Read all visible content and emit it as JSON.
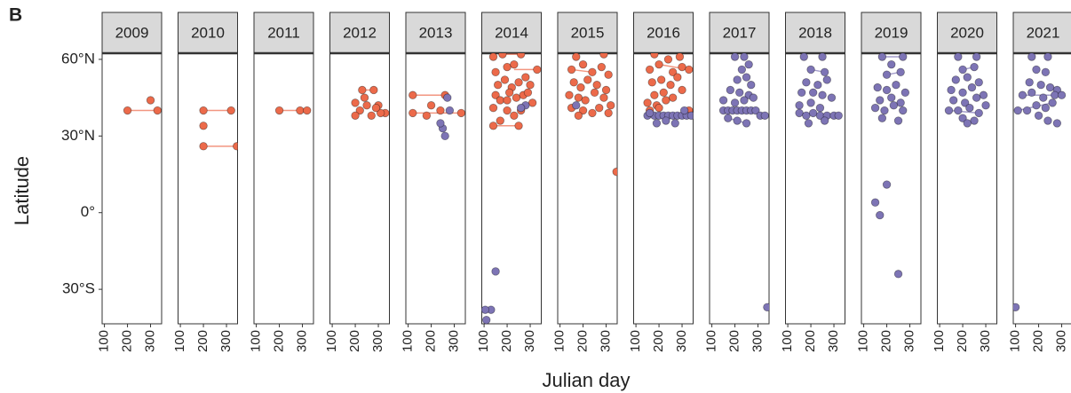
{
  "chart_data": {
    "type": "scatter",
    "panel_tag": "B",
    "ylabel": "Latitude",
    "xlabel": "Julian day",
    "xlim": [
      90,
      348
    ],
    "xticks": [
      100,
      200,
      300
    ],
    "ylim": [
      -43.5,
      62.4
    ],
    "yticks": [
      {
        "value": -30,
        "label": "30°S"
      },
      {
        "value": 0,
        "label": "0°"
      },
      {
        "value": 30,
        "label": "30°N"
      },
      {
        "value": 60,
        "label": "60°N"
      }
    ],
    "facets": [
      {
        "label": "2009",
        "series": [
          {
            "color": "#ec6a4a",
            "x": [
              200,
              300,
              330
            ],
            "values": [
              40,
              44,
              40
            ]
          }
        ],
        "tracks": [
          {
            "color": "#ec6a4a",
            "x": [
              200,
              330
            ],
            "values": [
              40,
              40
            ]
          }
        ]
      },
      {
        "label": "2010",
        "series": [
          {
            "color": "#ec6a4a",
            "x": [
              200,
              320,
              200,
              200,
              345
            ],
            "values": [
              40,
              40,
              34,
              26,
              26
            ]
          }
        ],
        "tracks": [
          {
            "color": "#ec6a4a",
            "x": [
              200,
              320
            ],
            "values": [
              40,
              40
            ]
          },
          {
            "color": "#ec6a4a",
            "x": [
              200,
              345
            ],
            "values": [
              26,
              26
            ]
          }
        ]
      },
      {
        "label": "2011",
        "series": [
          {
            "color": "#ec6a4a",
            "x": [
              200,
              290,
              320
            ],
            "values": [
              40,
              40,
              40
            ]
          }
        ],
        "tracks": [
          {
            "color": "#ec6a4a",
            "x": [
              200,
              320
            ],
            "values": [
              40,
              40
            ]
          }
        ]
      },
      {
        "label": "2012",
        "series": [
          {
            "color": "#ec6a4a",
            "x": [
              200,
              230,
              280,
              220,
              250,
              300,
              330,
              200,
              270,
              310,
              240,
              290
            ],
            "values": [
              43,
              48,
              48,
              40,
              42,
              42,
              39,
              38,
              38,
              39,
              45,
              41
            ]
          }
        ],
        "tracks": [
          {
            "color": "#ec6a4a",
            "x": [
              230,
              280
            ],
            "values": [
              48,
              48
            ]
          }
        ]
      },
      {
        "label": "2013",
        "series": [
          {
            "color": "#ec6a4a",
            "x": [
              120,
              120,
              200,
              260,
              330,
              180,
              240
            ],
            "values": [
              46,
              39,
              42,
              46,
              39,
              38,
              40
            ]
          },
          {
            "color": "#7d74b5",
            "x": [
              270,
              280,
              250,
              260,
              240
            ],
            "values": [
              45,
              40,
              33,
              30,
              35
            ]
          }
        ],
        "tracks": [
          {
            "color": "#ec6a4a",
            "x": [
              120,
              260
            ],
            "values": [
              46,
              46
            ]
          },
          {
            "color": "#ec6a4a",
            "x": [
              120,
              330
            ],
            "values": [
              39,
              39
            ]
          }
        ]
      },
      {
        "label": "2014",
        "series": [
          {
            "color": "#ec6a4a",
            "x": [
              140,
              180,
              260,
              150,
              200,
              230,
              330,
              160,
              190,
              220,
              250,
              280,
              300,
              150,
              170,
              210,
              240,
              270,
              140,
              200,
              230,
              260,
              310,
              170,
              140,
              250,
              200,
              290
            ],
            "values": [
              61,
              62,
              62,
              55,
              57,
              58,
              56,
              50,
              52,
              49,
              51,
              53,
              50,
              46,
              44,
              47,
              45,
              46,
              41,
              40,
              38,
              40,
              43,
              36,
              34,
              34,
              44,
              47
            ]
          },
          {
            "color": "#7d74b5",
            "x": [
              150,
              130,
              110,
              105,
              280,
              260
            ],
            "values": [
              -23,
              -38,
              -42,
              -38,
              42,
              41
            ]
          }
        ],
        "tracks": [
          {
            "color": "#ec6a4a",
            "x": [
              180,
              260
            ],
            "values": [
              62,
              62
            ]
          },
          {
            "color": "#ec6a4a",
            "x": [
              230,
              330
            ],
            "values": [
              56,
              56
            ]
          },
          {
            "color": "#ec6a4a",
            "x": [
              140,
              250
            ],
            "values": [
              34,
              34
            ]
          }
        ]
      },
      {
        "label": "2015",
        "series": [
          {
            "color": "#ec6a4a",
            "x": [
              170,
              290,
              150,
              200,
              240,
              280,
              310,
              160,
              190,
              220,
              260,
              300,
              140,
              180,
              210,
              250,
              290,
              320,
              150,
              200,
              240,
              270,
              310,
              180,
              345
            ],
            "values": [
              61,
              62,
              56,
              58,
              55,
              57,
              54,
              51,
              49,
              52,
              50,
              48,
              46,
              45,
              44,
              47,
              45,
              42,
              41,
              40,
              39,
              41,
              39,
              38,
              16
            ]
          },
          {
            "color": "#7d74b5",
            "x": [
              170
            ],
            "values": [
              42
            ]
          }
        ],
        "tracks": [
          {
            "color": "#ec6a4a",
            "x": [
              150,
              240
            ],
            "values": [
              56,
              55
            ]
          }
        ]
      },
      {
        "label": "2016",
        "series": [
          {
            "color": "#ec6a4a",
            "x": [
              180,
              240,
              290,
              160,
              200,
              260,
              300,
              330,
              170,
              210,
              250,
              280,
              180,
              220,
              260,
              300,
              150,
              190,
              230,
              160,
              200,
              330
            ],
            "values": [
              62,
              60,
              61,
              56,
              58,
              55,
              57,
              56,
              51,
              52,
              50,
              53,
              46,
              47,
              45,
              48,
              43,
              42,
              44,
              40,
              41,
              40
            ]
          },
          {
            "color": "#7d74b5",
            "x": [
              150,
              180,
              200,
              220,
              240,
              260,
              280,
              300,
              320,
              340,
              190,
              230,
              270,
              160,
              310
            ],
            "values": [
              38,
              38,
              38,
              38,
              38,
              38,
              38,
              38,
              38,
              38,
              35,
              36,
              35,
              39,
              40
            ]
          }
        ],
        "tracks": [
          {
            "color": "#ec6a4a",
            "x": [
              200,
              330
            ],
            "values": [
              58,
              56
            ]
          },
          {
            "color": "#7d74b5",
            "x": [
              150,
              340
            ],
            "values": [
              38,
              38
            ]
          }
        ]
      },
      {
        "label": "2017",
        "series": [
          {
            "color": "#7d74b5",
            "x": [
              200,
              240,
              230,
              260,
              210,
              250,
              270,
              180,
              220,
              260,
              150,
              200,
              240,
              280,
              150,
              170,
              190,
              210,
              230,
              250,
              270,
              290,
              310,
              330,
              170,
              210,
              250,
              340
            ],
            "values": [
              61,
              61,
              56,
              58,
              52,
              53,
              50,
              48,
              47,
              46,
              44,
              43,
              44,
              45,
              40,
              40,
              40,
              40,
              40,
              40,
              40,
              40,
              38,
              38,
              37,
              36,
              35,
              -37
            ]
          }
        ],
        "tracks": [
          {
            "color": "#7d74b5",
            "x": [
              150,
              290
            ],
            "values": [
              40,
              40
            ]
          },
          {
            "color": "#7d74b5",
            "x": [
              170,
              250
            ],
            "values": [
              37,
              35
            ]
          }
        ]
      },
      {
        "label": "2018",
        "series": [
          {
            "color": "#7d74b5",
            "x": [
              170,
              250,
              200,
              260,
              180,
              230,
              270,
              160,
              210,
              250,
              290,
              150,
              200,
              240,
              150,
              180,
              210,
              240,
              270,
              300,
              320,
              190,
              260
            ],
            "values": [
              61,
              61,
              56,
              55,
              51,
              50,
              52,
              47,
              47,
              46,
              45,
              42,
              43,
              41,
              39,
              38,
              39,
              38,
              38,
              38,
              38,
              35,
              36
            ]
          }
        ],
        "tracks": [
          {
            "color": "#7d74b5",
            "x": [
              200,
              260
            ],
            "values": [
              56,
              55
            ]
          },
          {
            "color": "#7d74b5",
            "x": [
              150,
              320
            ],
            "values": [
              39,
              38
            ]
          }
        ]
      },
      {
        "label": "2019",
        "series": [
          {
            "color": "#7d74b5",
            "x": [
              180,
              270,
              220,
              200,
              260,
              160,
              200,
              240,
              280,
              170,
              220,
              260,
              150,
              190,
              230,
              270,
              180,
              250,
              150,
              200,
              170,
              250
            ],
            "values": [
              61,
              61,
              58,
              54,
              55,
              49,
              48,
              50,
              47,
              44,
              45,
              43,
              41,
              40,
              42,
              40,
              37,
              36,
              4,
              11,
              -1,
              -24
            ]
          }
        ],
        "tracks": [
          {
            "color": "#7d74b5",
            "x": [
              180,
              270
            ],
            "values": [
              61,
              61
            ]
          },
          {
            "color": "#7d74b5",
            "x": [
              200,
              260
            ],
            "values": [
              54,
              55
            ]
          }
        ]
      },
      {
        "label": "2020",
        "series": [
          {
            "color": "#7d74b5",
            "x": [
              180,
              260,
              200,
              250,
              170,
              220,
              270,
              150,
              200,
              240,
              290,
              160,
              210,
              260,
              300,
              140,
              180,
              230,
              270,
              200,
              250,
              220
            ],
            "values": [
              61,
              61,
              56,
              57,
              52,
              53,
              51,
              48,
              47,
              49,
              46,
              44,
              43,
              45,
              42,
              40,
              40,
              41,
              39,
              37,
              36,
              35
            ]
          }
        ],
        "tracks": [
          {
            "color": "#7d74b5",
            "x": [
              200,
              250
            ],
            "values": [
              56,
              57
            ]
          },
          {
            "color": "#7d74b5",
            "x": [
              140,
              270
            ],
            "values": [
              40,
              39
            ]
          }
        ]
      },
      {
        "label": "2021",
        "series": [
          {
            "color": "#7d74b5",
            "x": [
              170,
              240,
              190,
              230,
              160,
              210,
              250,
              280,
              130,
              170,
              220,
              270,
              300,
              110,
              150,
              190,
              230,
              260,
              200,
              240,
              280,
              100
            ],
            "values": [
              61,
              61,
              56,
              55,
              51,
              50,
              49,
              48,
              46,
              47,
              45,
              46,
              46,
              40,
              40,
              42,
              41,
              43,
              38,
              36,
              35,
              -37
            ]
          }
        ],
        "tracks": [
          {
            "color": "#7d74b5",
            "x": [
              130,
              300
            ],
            "values": [
              46,
              46
            ]
          },
          {
            "color": "#7d74b5",
            "x": [
              110,
              260
            ],
            "values": [
              40,
              43
            ]
          }
        ]
      }
    ]
  }
}
